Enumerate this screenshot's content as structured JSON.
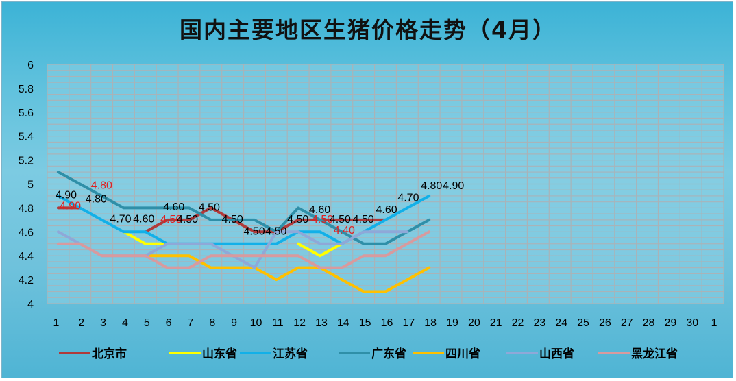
{
  "title": "国内主要地区生猪价格走势（4月）",
  "chart_data": {
    "type": "line",
    "title": "国内主要地区生猪价格走势（4月）",
    "x_categories": [
      "1",
      "2",
      "3",
      "4",
      "5",
      "6",
      "7",
      "8",
      "9",
      "10",
      "11",
      "12",
      "13",
      "14",
      "15",
      "16",
      "17",
      "18",
      "19",
      "20",
      "21",
      "22",
      "23",
      "24",
      "25",
      "26",
      "27",
      "28",
      "29",
      "30",
      "1"
    ],
    "ylim": [
      4,
      6
    ],
    "y_ticks": [
      "4",
      "4.2",
      "4.4",
      "4.6",
      "4.8",
      "5",
      "5.2",
      "5.4",
      "5.6",
      "5.8",
      "6"
    ],
    "grid": true,
    "legend_position": "bottom",
    "series": [
      {
        "name": "北京市",
        "color": "#b03a3a",
        "values": [
          4.8,
          4.8,
          null,
          null,
          4.6,
          4.7,
          4.7,
          4.8,
          4.7,
          4.6,
          4.6,
          4.7,
          4.7,
          4.7,
          4.7,
          4.7,
          null,
          null
        ]
      },
      {
        "name": "山东省",
        "color": "#ffff00",
        "values": [
          null,
          null,
          null,
          4.6,
          4.5,
          4.5,
          null,
          null,
          null,
          null,
          null,
          4.5,
          4.4,
          4.5,
          null,
          null,
          null,
          null
        ]
      },
      {
        "name": "江苏省",
        "color": "#12b0e8",
        "values": [
          4.9,
          4.8,
          4.7,
          4.6,
          4.6,
          4.5,
          4.5,
          4.5,
          4.5,
          4.5,
          4.5,
          4.6,
          4.6,
          4.5,
          4.6,
          4.7,
          4.8,
          4.9
        ]
      },
      {
        "name": "广东省",
        "color": "#2f8fa8",
        "values": [
          5.1,
          5.0,
          4.9,
          4.8,
          4.8,
          4.8,
          4.8,
          4.7,
          4.7,
          4.7,
          4.6,
          4.8,
          4.7,
          4.6,
          4.5,
          4.5,
          4.6,
          4.7
        ]
      },
      {
        "name": "四川省",
        "color": "#ffc000",
        "values": [
          null,
          null,
          null,
          null,
          4.4,
          4.4,
          4.4,
          4.3,
          4.3,
          4.3,
          4.2,
          4.3,
          4.3,
          4.2,
          4.1,
          4.1,
          4.2,
          4.3
        ]
      },
      {
        "name": "山西省",
        "color": "#8fa8d8",
        "values": [
          4.6,
          4.5,
          4.4,
          4.4,
          4.4,
          4.5,
          4.5,
          4.5,
          4.4,
          4.3,
          4.6,
          4.6,
          4.5,
          4.5,
          4.6,
          4.6,
          4.6,
          null
        ]
      },
      {
        "name": "黑龙江省",
        "color": "#d89a9e",
        "values": [
          4.5,
          4.5,
          4.4,
          4.4,
          4.4,
          4.3,
          4.3,
          4.4,
          4.4,
          4.4,
          4.4,
          4.4,
          4.3,
          4.3,
          4.4,
          4.4,
          4.5,
          4.6
        ]
      }
    ],
    "data_labels": [
      {
        "x": "1",
        "text": "4.90",
        "color": "#000000",
        "dx": -4,
        "dy": -14
      },
      {
        "x": "1",
        "text": "4.90",
        "color": "#e02020",
        "dx": 2,
        "dy": 2
      },
      {
        "x": "2",
        "text": "4.80",
        "color": "#e02020",
        "dx": 16,
        "dy": -28
      },
      {
        "x": "2",
        "text": "4.80",
        "color": "#000000",
        "dx": 8,
        "dy": -8
      },
      {
        "x": "4",
        "text": "4.70",
        "color": "#000000",
        "dx": -20,
        "dy": -14
      },
      {
        "x": "5",
        "text": "4.60",
        "color": "#000000",
        "dx": -18,
        "dy": -14
      },
      {
        "x": "6",
        "text": "4.60",
        "color": "#000000",
        "dx": -6,
        "dy": -14
      },
      {
        "x": "6",
        "text": "4.50",
        "color": "#e02020",
        "dx": -10,
        "dy": 4
      },
      {
        "x": "7",
        "text": "4.50",
        "color": "#000000",
        "dx": -18,
        "dy": 4
      },
      {
        "x": "8",
        "text": "4.50",
        "color": "#000000",
        "dx": -18,
        "dy": 4
      },
      {
        "x": "9",
        "text": "4.50",
        "color": "#000000",
        "dx": -16,
        "dy": 4
      },
      {
        "x": "10",
        "text": "4.50",
        "color": "#000000",
        "dx": -16,
        "dy": 4
      },
      {
        "x": "11",
        "text": "4.50",
        "color": "#000000",
        "dx": -16,
        "dy": 4
      },
      {
        "x": "12",
        "text": "4.50",
        "color": "#000000",
        "dx": -16,
        "dy": 4
      },
      {
        "x": "13",
        "text": "4.60",
        "color": "#000000",
        "dx": -16,
        "dy": -10
      },
      {
        "x": "13",
        "text": "4.50",
        "color": "#e02020",
        "dx": -12,
        "dy": 4
      },
      {
        "x": "14",
        "text": "4.50",
        "color": "#000000",
        "dx": -18,
        "dy": 4
      },
      {
        "x": "14",
        "text": "4.40",
        "color": "#e02020",
        "dx": -12,
        "dy": 20
      },
      {
        "x": "15",
        "text": "4.50",
        "color": "#000000",
        "dx": -16,
        "dy": 4
      },
      {
        "x": "16",
        "text": "4.60",
        "color": "#000000",
        "dx": -14,
        "dy": -10
      },
      {
        "x": "17",
        "text": "4.70",
        "color": "#000000",
        "dx": -14,
        "dy": -10
      },
      {
        "x": "18",
        "text": "4.80",
        "color": "#000000",
        "dx": -12,
        "dy": -10
      },
      {
        "x": "18",
        "text": "4.90",
        "color": "#000000",
        "dx": 20,
        "dy": -10
      }
    ]
  }
}
